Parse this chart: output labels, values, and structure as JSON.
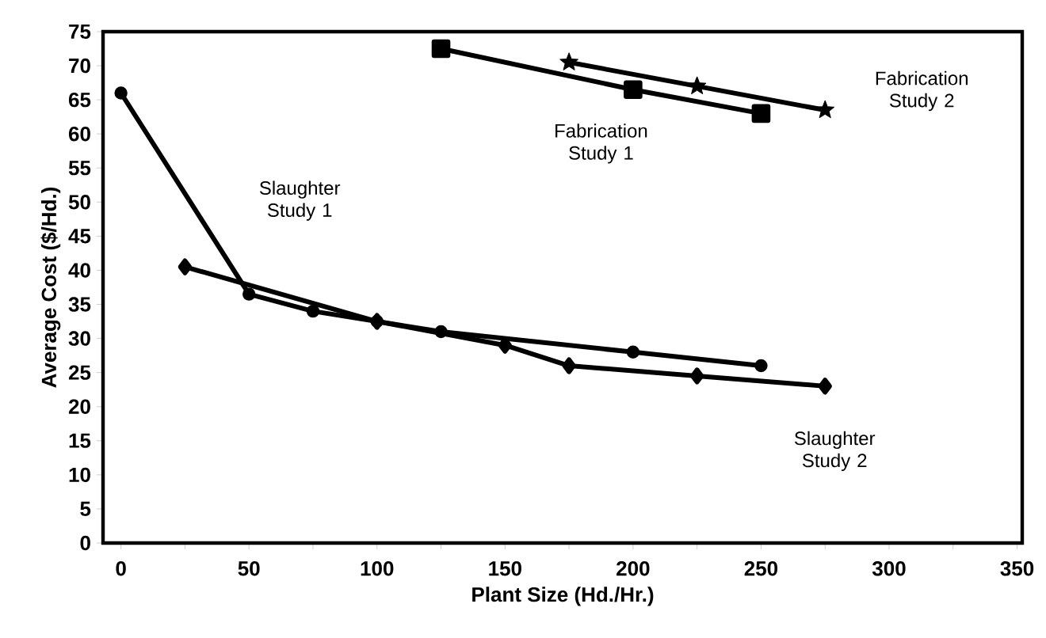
{
  "chart_data": {
    "type": "line",
    "xlabel": "Plant Size (Hd./Hr.)",
    "ylabel": "Average Cost ($/Hd.)",
    "xlim": [
      -7,
      352
    ],
    "ylim": [
      0,
      75
    ],
    "xticks": [
      0,
      {
        "value": 25,
        "label": null
      },
      50,
      {
        "value": 75,
        "label": null
      },
      100,
      {
        "value": 125,
        "label": null
      },
      150,
      {
        "value": 175,
        "label": null
      },
      200,
      {
        "value": 225,
        "label": null
      },
      250,
      {
        "value": 275,
        "label": null
      },
      300,
      {
        "value": 325,
        "label": null
      },
      350
    ],
    "yticks": [
      0,
      5,
      10,
      15,
      20,
      25,
      30,
      35,
      40,
      45,
      50,
      55,
      60,
      65,
      70,
      75
    ],
    "grid": false,
    "legend": false,
    "series": [
      {
        "name": "Slaughter Study 1",
        "color": "#000000",
        "marker": "circle",
        "x": [
          0,
          50,
          75,
          100,
          125,
          200,
          250
        ],
        "values": [
          66,
          36.5,
          34,
          32.5,
          31,
          28,
          26
        ]
      },
      {
        "name": "Slaughter Study 2",
        "color": "#000000",
        "marker": "diamond",
        "x": [
          25,
          100,
          150,
          175,
          225,
          275
        ],
        "values": [
          40.5,
          32.5,
          29,
          26,
          24.5,
          23
        ]
      },
      {
        "name": "Fabrication Study 1",
        "color": "#000000",
        "marker": "square",
        "x": [
          125,
          200,
          250
        ],
        "values": [
          72.5,
          66.5,
          63
        ]
      },
      {
        "name": "Fabrication Study 2",
        "color": "#000000",
        "marker": "star",
        "x": [
          175,
          225,
          275
        ],
        "values": [
          70.5,
          67,
          63.5
        ]
      }
    ]
  }
}
